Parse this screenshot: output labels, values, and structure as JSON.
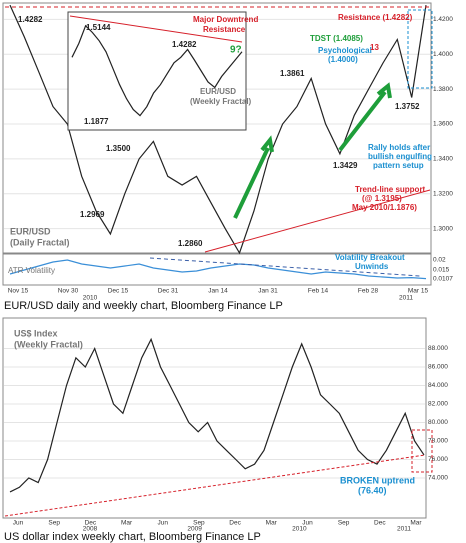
{
  "chart_data": [
    {
      "type": "line",
      "name": "EUR/USD daily",
      "color": "#222222",
      "values": [
        1.4282,
        1.41,
        1.39,
        1.37,
        1.36,
        1.33,
        1.31,
        1.2969,
        1.32,
        1.34,
        1.35,
        1.33,
        1.325,
        1.33,
        1.315,
        1.3,
        1.286,
        1.31,
        1.34,
        1.36,
        1.37,
        1.3861,
        1.36,
        1.3429,
        1.365,
        1.38,
        1.395,
        1.4085,
        1.3752,
        1.4282
      ],
      "ylim": [
        1.29,
        1.43
      ],
      "yticks": [
        {
          "value": 1.42,
          "label": "1.4200"
        },
        {
          "value": 1.4,
          "label": "1.4000"
        },
        {
          "value": 1.38,
          "label": "1.3800"
        },
        {
          "value": 1.36,
          "label": "1.3600"
        },
        {
          "value": 1.34,
          "label": "1.3400"
        },
        {
          "value": 1.32,
          "label": "1.3200"
        },
        {
          "value": 1.3,
          "label": "1.3000"
        }
      ],
      "x_labels": [
        "Nov 15",
        "Nov 30",
        "Dec 15",
        "Dec 31",
        "Jan 14",
        "Jan 31",
        "Feb 14",
        "Feb 28",
        "Mar 15"
      ],
      "years": [
        "2010",
        "2011"
      ],
      "grid": true
    },
    {
      "type": "line",
      "name": "EUR/USD weekly",
      "color": "#222222",
      "values": [
        1.4,
        1.45,
        1.5144,
        1.49,
        1.46,
        1.42,
        1.36,
        1.3,
        1.25,
        1.21,
        1.1877,
        1.22,
        1.27,
        1.3,
        1.34,
        1.38,
        1.4,
        1.4282,
        1.39,
        1.35,
        1.31,
        1.29,
        1.33,
        1.36,
        1.39,
        1.42
      ],
      "ylim": [
        1.15,
        1.55
      ]
    },
    {
      "type": "line",
      "name": "ATR Volatility",
      "color": "#3a8fd8",
      "values": [
        0.013,
        0.015,
        0.017,
        0.019,
        0.02,
        0.018,
        0.017,
        0.016,
        0.017,
        0.018,
        0.016,
        0.015,
        0.014,
        0.0145,
        0.016,
        0.017,
        0.018,
        0.0175,
        0.016,
        0.015,
        0.014,
        0.013,
        0.014,
        0.0135,
        0.013,
        0.012,
        0.0115,
        0.011,
        0.0112,
        0.0107
      ],
      "ylim": [
        0.008,
        0.022
      ],
      "yticks": [
        0.02,
        0.015,
        0.0107
      ]
    },
    {
      "type": "line",
      "name": "US$ Index",
      "color": "#222222",
      "values": [
        72.5,
        73,
        74,
        73.5,
        76,
        80,
        84,
        87,
        86,
        88,
        85,
        82,
        81,
        84,
        87,
        89,
        86,
        84,
        82,
        80,
        79,
        80,
        78,
        77,
        76,
        75,
        75.5,
        77,
        80,
        83,
        86,
        88.5,
        86,
        83,
        82,
        81,
        79,
        77,
        76,
        75.5,
        77,
        79,
        81,
        78,
        76.5
      ],
      "ylim": [
        70,
        90
      ],
      "yticks": [
        {
          "value": 88,
          "label": "88.000"
        },
        {
          "value": 86,
          "label": "86.000"
        },
        {
          "value": 84,
          "label": "84.000"
        },
        {
          "value": 82,
          "label": "82.000"
        },
        {
          "value": 80,
          "label": "80.000"
        },
        {
          "value": 78,
          "label": "78.000"
        },
        {
          "value": 76,
          "label": "76.000"
        },
        {
          "value": 74,
          "label": "74.000"
        }
      ],
      "x_labels": [
        "Jun",
        "Sep",
        "Dec",
        "Mar",
        "Jun",
        "Sep",
        "Dec",
        "Mar",
        "Jun",
        "Sep",
        "Dec",
        "Mar"
      ],
      "years": [
        "2008",
        "2009",
        "2010",
        "2011"
      ],
      "grid": true
    }
  ],
  "annotations": {
    "top_high": "1.4282",
    "inset_high": "1.5144",
    "inset_mid": "1.4282",
    "inset_low": "1.1877",
    "inset_count": "9?",
    "inset_label": [
      "EUR/USD",
      "(Weekly Fractal)"
    ],
    "downtrend": [
      "Major Downtrend",
      "Resistance"
    ],
    "resistance": "Resistance (1.4282)",
    "tdst": "TDST (1.4085)",
    "psychological": [
      "Psychological",
      "(1.4000)"
    ],
    "count": "13",
    "p1": "1.3861",
    "p2": "1.3752",
    "p3": "1.3429",
    "p4": "1.3500",
    "p5": "1.2860",
    "p6": "1.2969",
    "rally": [
      "Rally holds after",
      "bullish engulfing",
      "pattern setup"
    ],
    "daily_label": [
      "EUR/USD",
      "(Daily Fractal)"
    ],
    "trendline": [
      "Trend-line support",
      "(@ 1.3195)",
      "May 2010/1.1876)"
    ],
    "atr_label": "ATR Volatility",
    "vol": [
      "Volatility Breakout",
      "Unwinds"
    ],
    "usd_label": [
      "US$ Index",
      "(Weekly Fractal)"
    ],
    "broken": [
      "BROKEN uptrend",
      "(76.40)"
    ]
  },
  "captions": [
    "EUR/USD daily and weekly chart, Bloomberg Finance LP",
    "US dollar index weekly chart, Bloomberg Finance LP"
  ]
}
